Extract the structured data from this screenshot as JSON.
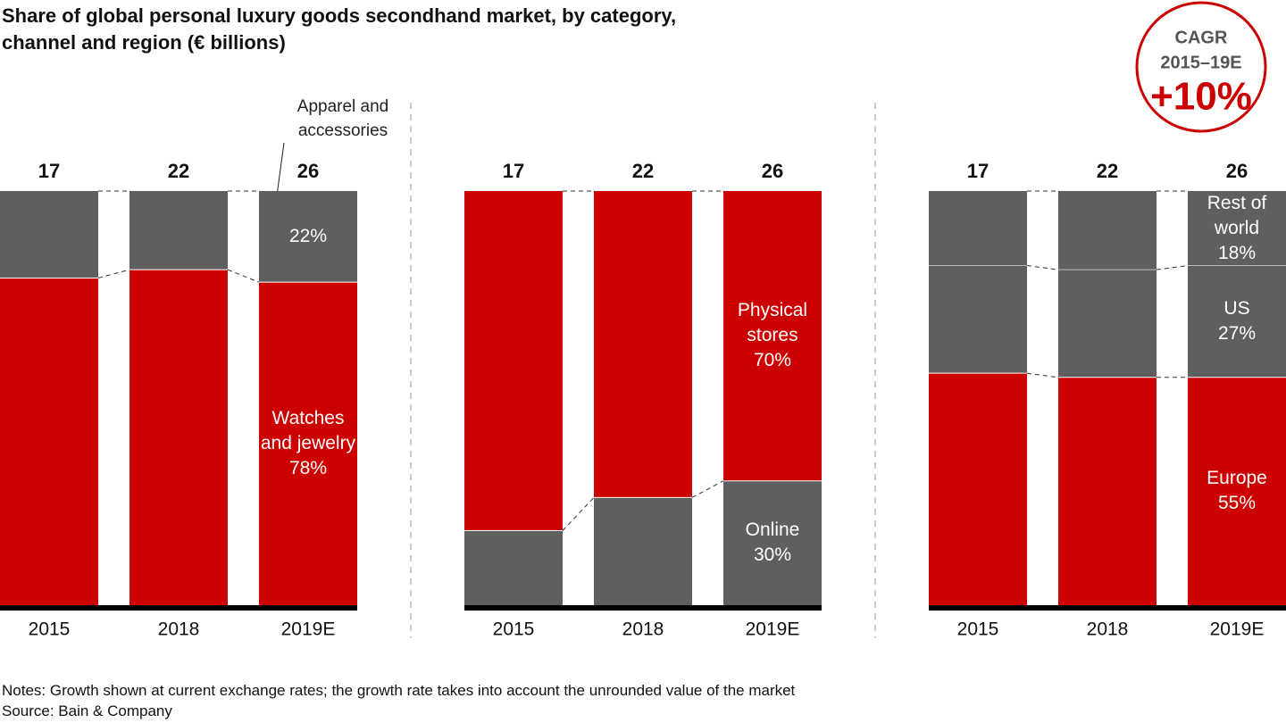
{
  "title": "Share of global personal luxury goods secondhand market, by category, channel and region (€ billions)",
  "cagr": {
    "label": "CAGR",
    "period": "2015–19E",
    "value": {
      "value": 10,
      "label": "+10%"
    }
  },
  "notes": "Notes: Growth shown at current exchange rates; the growth rate takes into account the unrounded value of the market",
  "source": "Source: Bain & Company",
  "chart_data": [
    {
      "type": "bar",
      "stacked": "percent",
      "ylim": [
        0,
        100
      ],
      "categories": [
        "2015",
        "2018",
        "2019E"
      ],
      "totals": [
        17,
        22,
        26
      ],
      "series": [
        {
          "name": "Watches and jewelry",
          "color": "#cc0000",
          "values": [
            79,
            81,
            78
          ],
          "value_labels": [
            null,
            null,
            "78%"
          ]
        },
        {
          "name": "Apparel and accessories",
          "color": "#5f5f5f",
          "values": [
            21,
            19,
            22
          ],
          "value_labels": [
            null,
            null,
            "22%"
          ]
        }
      ]
    },
    {
      "type": "bar",
      "stacked": "percent",
      "ylim": [
        0,
        100
      ],
      "categories": [
        "2015",
        "2018",
        "2019E"
      ],
      "totals": [
        17,
        22,
        26
      ],
      "series": [
        {
          "name": "Online",
          "color": "#5f5f5f",
          "values": [
            18,
            26,
            30
          ],
          "value_labels": [
            null,
            null,
            "30%"
          ]
        },
        {
          "name": "Physical stores",
          "color": "#cc0000",
          "values": [
            82,
            74,
            70
          ],
          "value_labels": [
            null,
            null,
            "70%"
          ]
        }
      ]
    },
    {
      "type": "bar",
      "stacked": "percent",
      "ylim": [
        0,
        100
      ],
      "categories": [
        "2015",
        "2018",
        "2019E"
      ],
      "totals": [
        17,
        22,
        26
      ],
      "series": [
        {
          "name": "Europe",
          "color": "#cc0000",
          "values": [
            56,
            55,
            55
          ],
          "value_labels": [
            null,
            null,
            "55%"
          ]
        },
        {
          "name": "US",
          "color": "#5f5f5f",
          "values": [
            26,
            26,
            27
          ],
          "value_labels": [
            null,
            null,
            "27%"
          ]
        },
        {
          "name": "Rest of world",
          "color": "#5f5f5f",
          "values": [
            18,
            19,
            18
          ],
          "value_labels": [
            null,
            null,
            "18%"
          ]
        }
      ]
    }
  ]
}
